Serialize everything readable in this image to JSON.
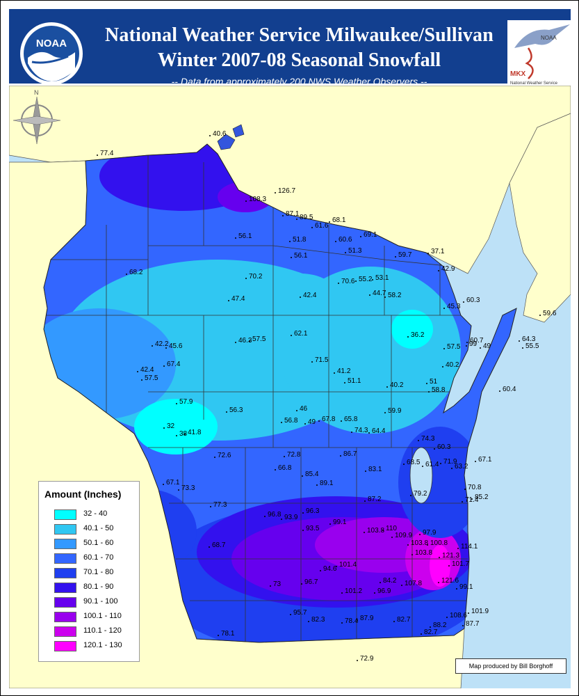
{
  "header": {
    "title_line1": "National Weather Service Milwaukee/Sullivan",
    "title_line2": "Winter 2007-08 Seasonal Snowfall",
    "subtitle": "-- Data from approximately 200 NWS Weather Observers --",
    "left_logo_text": "NOAA",
    "right_logo_text": "MKX",
    "right_logo_sub": "National Weather Service",
    "right_logo_noaa": "NOAA"
  },
  "colors": {
    "lake": "#bde1f7",
    "land_outside": "#ffffcc",
    "header_bg": "#123f8f",
    "county_line": "#333333"
  },
  "legend": {
    "title": "Amount (Inches)",
    "items": [
      {
        "label": "32 - 40",
        "color": "#00ffff"
      },
      {
        "label": "40.1 - 50",
        "color": "#30c7f2"
      },
      {
        "label": "50.1 - 60",
        "color": "#3399ff"
      },
      {
        "label": "60.1 - 70",
        "color": "#3366ff"
      },
      {
        "label": "70.1 - 80",
        "color": "#1f3ff0"
      },
      {
        "label": "80.1 - 90",
        "color": "#3311ee"
      },
      {
        "label": "90.1 - 100",
        "color": "#6600ee"
      },
      {
        "label": "100.1 - 110",
        "color": "#9900ee"
      },
      {
        "label": "110.1 - 120",
        "color": "#cc00ee"
      },
      {
        "label": "120.1 - 130",
        "color": "#ff00ff"
      }
    ]
  },
  "observations": [
    "77.4",
    "40.6",
    "126.7",
    "108.3",
    "87.1",
    "89.5",
    "68.1",
    "61.6",
    "56.1",
    "51.8",
    "60.6",
    "69.1",
    "51.3",
    "56.1",
    "59.7",
    "37.1",
    "68.2",
    "42.9",
    "70.2",
    "70.6",
    "55.2",
    "53.1",
    "47.4",
    "42.4",
    "44.7",
    "58.2",
    "60.3",
    "45.3",
    "59.6",
    "36.2",
    "60.7",
    "46.3",
    "57.5",
    "62.1",
    "57.5",
    "99",
    "49",
    "64.3",
    "55.5",
    "42.2",
    "45.6",
    "71.5",
    "40.2",
    "67.4",
    "41.2",
    "51.1",
    "40.2",
    "42.4",
    "51",
    "57.5",
    "58.8",
    "60.4",
    "57.9",
    "46",
    "56.3",
    "56.8",
    "49",
    "67.8",
    "65.8",
    "59.9",
    "32",
    "38",
    "41.8",
    "74.3",
    "64.4",
    "74.3",
    "60.3",
    "72.6",
    "72.8",
    "86.7",
    "68.5",
    "61.4",
    "71.9",
    "63.2",
    "67.1",
    "66.8",
    "83.1",
    "85.4",
    "89.1",
    "67.1",
    "73.3",
    "79.2",
    "70.8",
    "71.4",
    "85.2",
    "87.2",
    "77.3",
    "96.3",
    "96.8",
    "93.9",
    "99.1",
    "103.8",
    "110",
    "97.9",
    "93.5",
    "109.9",
    "103.8",
    "100.8",
    "114.1",
    "68.7",
    "103.8",
    "121.3",
    "101.7",
    "101.4",
    "94.6",
    "121.6",
    "73",
    "96.7",
    "84.2",
    "107.8",
    "99.1",
    "101.2",
    "96.9",
    "101.9",
    "95.7",
    "108.6",
    "82.3",
    "78.4",
    "87.9",
    "82.7",
    "87.7",
    "82.7",
    "88.2",
    "78.1",
    "72.9"
  ],
  "credit": "Map produced by Bill Borghoff"
}
